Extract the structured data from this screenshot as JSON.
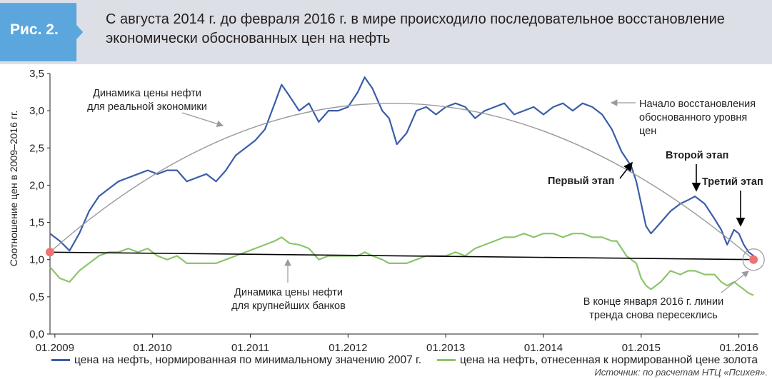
{
  "figure": {
    "label": "Рис. 2.",
    "title_line1": "С августа 2014 г. до февраля 2016 г. в мире происходило последовательное восстановление",
    "title_line2": "экономически обоснованных цен на нефть"
  },
  "source": "Источник: по расчетам НТЦ «Психея».",
  "colors": {
    "header_bg": "#dcdfe6",
    "badge": "#5aa6dd",
    "blue_series": "#3a5da8",
    "green_series": "#8cc56b",
    "trend_arc": "#9a9a9a",
    "marker": "#f07272"
  },
  "chart_data": {
    "type": "line",
    "ylabel": "Соотношение цен в 2009–2016 гг.",
    "xlabel": "",
    "ylim": [
      0,
      3.5
    ],
    "xlim": [
      2008.95,
      2016.2
    ],
    "y_ticks": [
      "0,0",
      "0,5",
      "1,0",
      "1,5",
      "2,0",
      "2,5",
      "3,0",
      "3,5"
    ],
    "x_ticks": [
      "01.2009",
      "01.2010",
      "01.2011",
      "01.2012",
      "01.2013",
      "01.2014",
      "01.2015",
      "01.2016"
    ],
    "grid": false,
    "legend_position": "bottom",
    "series": [
      {
        "name": "цена на нефть, нормированная по минимальному значению 2007 г.",
        "color": "#3a5da8",
        "x": [
          2008.95,
          2009.05,
          2009.15,
          2009.25,
          2009.35,
          2009.45,
          2009.55,
          2009.65,
          2009.75,
          2009.85,
          2009.95,
          2010.05,
          2010.15,
          2010.25,
          2010.35,
          2010.45,
          2010.55,
          2010.65,
          2010.75,
          2010.85,
          2010.95,
          2011.05,
          2011.15,
          2011.25,
          2011.32,
          2011.4,
          2011.5,
          2011.6,
          2011.7,
          2011.8,
          2011.9,
          2012.0,
          2012.1,
          2012.17,
          2012.25,
          2012.35,
          2012.42,
          2012.5,
          2012.6,
          2012.7,
          2012.8,
          2012.9,
          2013.0,
          2013.1,
          2013.2,
          2013.3,
          2013.4,
          2013.5,
          2013.6,
          2013.7,
          2013.8,
          2013.9,
          2014.0,
          2014.1,
          2014.2,
          2014.3,
          2014.4,
          2014.5,
          2014.6,
          2014.7,
          2014.75,
          2014.8,
          2014.85,
          2014.9,
          2014.95,
          2015.0,
          2015.05,
          2015.1,
          2015.2,
          2015.3,
          2015.4,
          2015.48,
          2015.55,
          2015.65,
          2015.75,
          2015.82,
          2015.88,
          2015.95,
          2016.0,
          2016.05,
          2016.1,
          2016.15
        ],
        "y": [
          1.35,
          1.25,
          1.12,
          1.35,
          1.65,
          1.85,
          1.95,
          2.05,
          2.1,
          2.15,
          2.2,
          2.15,
          2.2,
          2.2,
          2.05,
          2.1,
          2.15,
          2.05,
          2.2,
          2.4,
          2.5,
          2.6,
          2.75,
          3.1,
          3.35,
          3.2,
          3.0,
          3.1,
          2.85,
          3.0,
          3.0,
          3.05,
          3.25,
          3.45,
          3.3,
          3.0,
          2.9,
          2.55,
          2.7,
          3.0,
          3.05,
          2.95,
          3.05,
          3.1,
          3.05,
          2.9,
          3.0,
          3.05,
          3.1,
          2.95,
          3.0,
          3.05,
          2.95,
          3.05,
          3.1,
          3.0,
          3.1,
          3.05,
          2.95,
          2.75,
          2.6,
          2.45,
          2.35,
          2.25,
          2.05,
          1.75,
          1.45,
          1.35,
          1.5,
          1.65,
          1.75,
          1.8,
          1.85,
          1.75,
          1.55,
          1.4,
          1.2,
          1.4,
          1.35,
          1.2,
          1.1,
          1.05
        ]
      },
      {
        "name": "цена на нефть, отнесенная к нормированной цене золота",
        "color": "#8cc56b",
        "x": [
          2008.95,
          2009.05,
          2009.15,
          2009.25,
          2009.35,
          2009.45,
          2009.55,
          2009.65,
          2009.75,
          2009.85,
          2009.95,
          2010.05,
          2010.15,
          2010.25,
          2010.35,
          2010.45,
          2010.55,
          2010.65,
          2010.75,
          2010.85,
          2010.95,
          2011.05,
          2011.15,
          2011.25,
          2011.32,
          2011.4,
          2011.5,
          2011.6,
          2011.7,
          2011.8,
          2011.9,
          2012.0,
          2012.1,
          2012.17,
          2012.25,
          2012.35,
          2012.42,
          2012.5,
          2012.6,
          2012.7,
          2012.8,
          2012.9,
          2013.0,
          2013.1,
          2013.2,
          2013.3,
          2013.4,
          2013.5,
          2013.6,
          2013.7,
          2013.8,
          2013.9,
          2014.0,
          2014.1,
          2014.2,
          2014.3,
          2014.4,
          2014.5,
          2014.6,
          2014.7,
          2014.75,
          2014.8,
          2014.85,
          2014.9,
          2014.95,
          2015.0,
          2015.05,
          2015.1,
          2015.2,
          2015.3,
          2015.4,
          2015.48,
          2015.55,
          2015.65,
          2015.75,
          2015.82,
          2015.88,
          2015.95,
          2016.0,
          2016.05,
          2016.1,
          2016.15
        ],
        "y": [
          0.9,
          0.75,
          0.7,
          0.85,
          0.95,
          1.05,
          1.1,
          1.1,
          1.15,
          1.1,
          1.15,
          1.05,
          1.0,
          1.05,
          0.95,
          0.95,
          0.95,
          0.95,
          1.0,
          1.05,
          1.1,
          1.15,
          1.2,
          1.25,
          1.3,
          1.22,
          1.2,
          1.15,
          1.0,
          1.05,
          1.05,
          1.05,
          1.05,
          1.1,
          1.05,
          1.0,
          0.95,
          0.95,
          0.95,
          1.0,
          1.05,
          1.05,
          1.05,
          1.1,
          1.05,
          1.15,
          1.2,
          1.25,
          1.3,
          1.3,
          1.35,
          1.3,
          1.35,
          1.35,
          1.3,
          1.35,
          1.35,
          1.3,
          1.3,
          1.25,
          1.25,
          1.15,
          1.05,
          1.0,
          0.95,
          0.75,
          0.65,
          0.6,
          0.7,
          0.85,
          0.8,
          0.85,
          0.85,
          0.8,
          0.8,
          0.7,
          0.65,
          0.7,
          0.65,
          0.6,
          0.55,
          0.52
        ]
      }
    ],
    "trend_line": {
      "x": [
        2008.95,
        2016.15
      ],
      "y": [
        1.1,
        1.0
      ]
    },
    "arc": {
      "x": [
        2008.95,
        2012.5,
        2016.15
      ],
      "y": [
        1.1,
        3.1,
        1.0
      ]
    },
    "markers": [
      {
        "x": 2008.95,
        "y": 1.1
      },
      {
        "x": 2016.15,
        "y": 1.0
      }
    ],
    "annotations": {
      "real_econ": [
        "Динамика цены нефти",
        "для реальной экономики"
      ],
      "banks": [
        "Динамика цены нефти",
        "для крупнейших банков"
      ],
      "recovery": [
        "Начало восстановления",
        "обоснованного уровня",
        "цен"
      ],
      "stage1": "Первый этап",
      "stage2": "Второй этап",
      "stage3": "Третий этап",
      "crossing": [
        "В конце января 2016 г. линии",
        "тренда снова пересеклись"
      ]
    }
  }
}
